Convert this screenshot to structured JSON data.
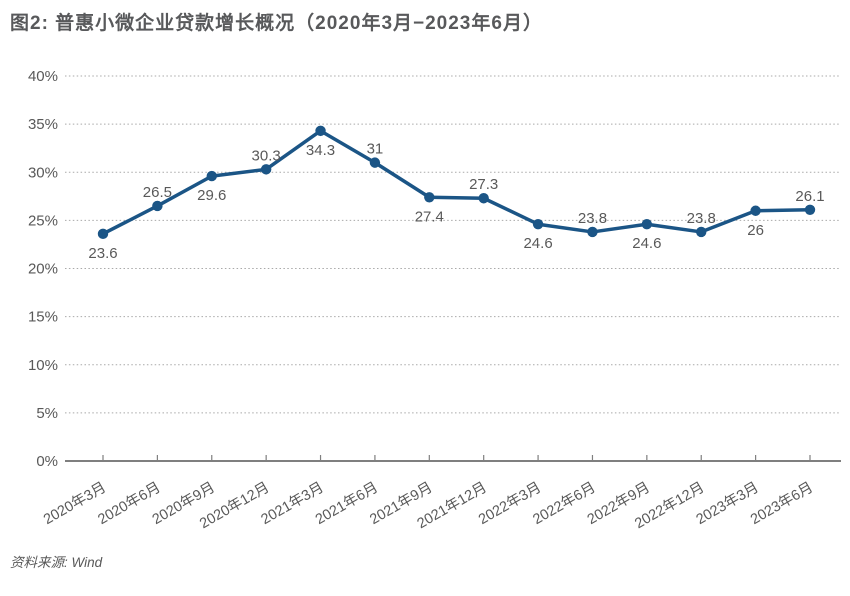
{
  "title": "图2: 普惠小微企业贷款增长概况（2020年3月−2023年6月）",
  "source": "资料来源: Wind",
  "chart_data": {
    "type": "line",
    "title": "普惠小微企业贷款增长概况（2020年3月−2023年6月）",
    "categories": [
      "2020年3月",
      "2020年6月",
      "2020年9月",
      "2020年12月",
      "2021年3月",
      "2021年6月",
      "2021年9月",
      "2021年12月",
      "2022年3月",
      "2022年6月",
      "2022年9月",
      "2022年12月",
      "2023年3月",
      "2023年6月"
    ],
    "values": [
      23.6,
      26.5,
      29.6,
      30.3,
      34.3,
      31,
      27.4,
      27.3,
      24.6,
      23.8,
      24.6,
      23.8,
      26,
      26.1
    ],
    "point_labels": [
      "23.6",
      "26.5",
      "29.6",
      "30.3",
      "34.3",
      "31",
      "27.4",
      "27.3",
      "24.6",
      "23.8",
      "24.6",
      "23.8",
      "26",
      "26.1"
    ],
    "xlabel": "",
    "ylabel": "",
    "ylim": [
      0,
      40
    ],
    "ytick_values": [
      0,
      5,
      10,
      15,
      20,
      25,
      30,
      35,
      40
    ],
    "ytick_labels": [
      "0%",
      "5%",
      "10%",
      "15%",
      "20%",
      "25%",
      "30%",
      "35%",
      "40%"
    ],
    "grid": "horizontal-dotted",
    "legend_position": "none",
    "marker": "circle"
  },
  "colors": {
    "line": "#1b5586",
    "marker": "#1b5586",
    "text": "#595959",
    "grid": "#a9a9a9",
    "axis": "#7f7f7f",
    "title": "#58595b"
  }
}
